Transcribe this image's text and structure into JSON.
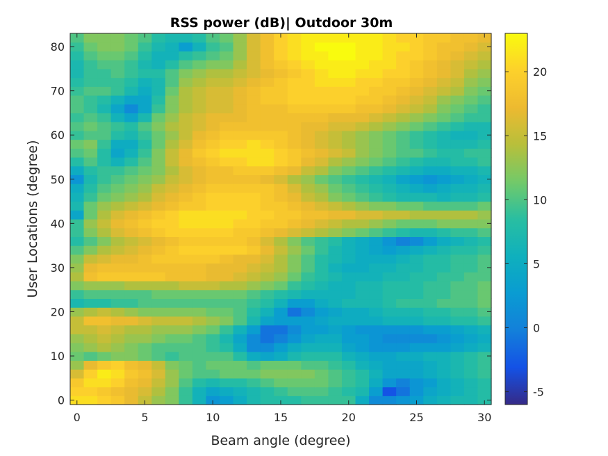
{
  "chart_data": {
    "type": "heatmap",
    "title": "RSS power (dB)| Outdoor 30m",
    "xlabel": "Beam angle (degree)",
    "ylabel": "User Locations (degree)",
    "x": [
      0,
      1,
      2,
      3,
      4,
      5,
      6,
      7,
      8,
      9,
      10,
      11,
      12,
      13,
      14,
      15,
      16,
      17,
      18,
      19,
      20,
      21,
      22,
      23,
      24,
      25,
      26,
      27,
      28,
      29,
      30
    ],
    "y": [
      0,
      2,
      4,
      6,
      8,
      10,
      12,
      14,
      16,
      18,
      20,
      22,
      24,
      26,
      28,
      30,
      32,
      34,
      36,
      38,
      40,
      42,
      44,
      46,
      48,
      50,
      52,
      54,
      56,
      58,
      60,
      62,
      64,
      66,
      68,
      70,
      72,
      74,
      76,
      78,
      80,
      82
    ],
    "xlim": [
      -0.5,
      30.5
    ],
    "ylim": [
      -1,
      83
    ],
    "xticks": [
      0,
      5,
      10,
      15,
      20,
      25,
      30
    ],
    "yticks": [
      0,
      10,
      20,
      30,
      40,
      50,
      60,
      70,
      80
    ],
    "colorbar": {
      "min": -6,
      "max": 23,
      "ticks": [
        -5,
        0,
        5,
        10,
        15,
        20
      ],
      "colormap": "parula"
    },
    "z": [
      [
        21,
        21,
        20,
        19,
        17,
        15,
        13,
        12,
        9,
        6,
        2,
        3,
        5,
        7,
        8,
        8,
        8,
        9,
        9,
        9,
        9,
        5,
        1,
        1,
        2,
        3,
        5,
        6,
        7,
        7,
        8
      ],
      [
        20,
        20,
        19,
        18,
        17,
        16,
        14,
        12,
        9,
        6,
        4,
        5,
        6,
        7,
        8,
        9,
        10,
        10,
        10,
        9,
        8,
        7,
        3,
        -3,
        -1,
        2,
        4,
        5,
        6,
        7,
        8
      ],
      [
        19,
        21,
        21,
        20,
        18,
        17,
        15,
        13,
        10,
        8,
        7,
        8,
        8,
        9,
        10,
        11,
        11,
        11,
        11,
        10,
        9,
        8,
        5,
        2,
        0,
        2,
        3,
        5,
        6,
        7,
        8
      ],
      [
        16,
        20,
        22,
        21,
        19,
        18,
        16,
        13,
        11,
        10,
        10,
        11,
        11,
        11,
        12,
        12,
        12,
        12,
        11,
        10,
        9,
        8,
        6,
        4,
        4,
        4,
        5,
        6,
        7,
        8,
        9
      ],
      [
        13,
        17,
        19,
        20,
        18,
        17,
        15,
        12,
        11,
        10,
        11,
        11,
        11,
        10,
        11,
        11,
        11,
        10,
        10,
        9,
        8,
        6,
        5,
        4,
        4,
        4,
        5,
        6,
        7,
        8,
        9
      ],
      [
        11,
        10,
        11,
        12,
        12,
        11,
        10,
        9,
        10,
        10,
        10,
        10,
        8,
        5,
        4,
        5,
        7,
        8,
        8,
        8,
        6,
        5,
        4,
        4,
        5,
        5,
        6,
        6,
        7,
        8,
        9
      ],
      [
        12,
        13,
        14,
        13,
        12,
        11,
        10,
        10,
        10,
        10,
        9,
        8,
        5,
        1,
        1,
        3,
        5,
        6,
        6,
        6,
        4,
        3,
        2,
        2,
        2,
        3,
        3,
        3,
        4,
        5,
        6
      ],
      [
        13,
        14,
        15,
        14,
        13,
        13,
        12,
        11,
        11,
        10,
        9,
        7,
        4,
        1,
        -1,
        0,
        2,
        4,
        5,
        5,
        3,
        3,
        2,
        1,
        1,
        1,
        1,
        2,
        3,
        4,
        5
      ],
      [
        15,
        15,
        16,
        15,
        14,
        14,
        13,
        13,
        13,
        12,
        11,
        9,
        6,
        3,
        -1,
        -1,
        1,
        3,
        3,
        4,
        3,
        2,
        2,
        2,
        2,
        2,
        3,
        3,
        4,
        5,
        6
      ],
      [
        15,
        18,
        18,
        17,
        17,
        16,
        15,
        15,
        15,
        14,
        13,
        12,
        10,
        7,
        4,
        3,
        3,
        3,
        4,
        5,
        5,
        5,
        5,
        6,
        6,
        6,
        7,
        7,
        8,
        8,
        9
      ],
      [
        13,
        14,
        15,
        14,
        13,
        12,
        12,
        12,
        12,
        12,
        11,
        11,
        10,
        8,
        6,
        3,
        -1,
        1,
        3,
        4,
        5,
        5,
        6,
        7,
        7,
        7,
        8,
        8,
        9,
        9,
        10
      ],
      [
        7,
        8,
        8,
        9,
        9,
        10,
        10,
        10,
        10,
        10,
        10,
        10,
        10,
        9,
        8,
        6,
        3,
        3,
        5,
        6,
        7,
        7,
        7,
        8,
        9,
        9,
        9,
        10,
        10,
        10,
        11
      ],
      [
        9,
        10,
        10,
        10,
        10,
        10,
        11,
        11,
        11,
        11,
        11,
        11,
        11,
        10,
        9,
        8,
        7,
        6,
        6,
        6,
        6,
        7,
        7,
        8,
        8,
        8,
        9,
        9,
        10,
        10,
        11
      ],
      [
        12,
        13,
        13,
        13,
        14,
        14,
        14,
        14,
        15,
        15,
        15,
        14,
        14,
        13,
        12,
        11,
        9,
        8,
        7,
        6,
        6,
        7,
        7,
        8,
        8,
        8,
        9,
        9,
        10,
        10,
        11
      ],
      [
        14,
        18,
        19,
        19,
        19,
        19,
        19,
        18,
        18,
        18,
        17,
        17,
        16,
        15,
        14,
        13,
        11,
        9,
        8,
        7,
        6,
        6,
        6,
        7,
        7,
        8,
        8,
        9,
        9,
        10,
        10
      ],
      [
        13,
        17,
        18,
        18,
        18,
        18,
        18,
        18,
        18,
        18,
        17,
        17,
        17,
        16,
        15,
        14,
        12,
        10,
        8,
        6,
        5,
        5,
        6,
        6,
        7,
        7,
        8,
        8,
        9,
        9,
        10
      ],
      [
        12,
        15,
        16,
        17,
        17,
        18,
        19,
        19,
        19,
        19,
        19,
        18,
        17,
        17,
        16,
        14,
        12,
        10,
        8,
        7,
        6,
        5,
        5,
        5,
        6,
        7,
        8,
        8,
        9,
        9,
        10
      ],
      [
        10,
        12,
        14,
        15,
        16,
        17,
        18,
        19,
        20,
        20,
        20,
        20,
        20,
        19,
        17,
        15,
        13,
        11,
        9,
        7,
        6,
        5,
        4,
        3,
        4,
        5,
        6,
        7,
        8,
        8,
        9
      ],
      [
        8,
        10,
        12,
        14,
        15,
        16,
        17,
        18,
        19,
        19,
        19,
        19,
        19,
        18,
        16,
        14,
        12,
        10,
        9,
        8,
        6,
        5,
        4,
        2,
        0,
        1,
        3,
        5,
        6,
        7,
        8
      ],
      [
        9,
        12,
        14,
        16,
        17,
        18,
        19,
        20,
        20,
        20,
        20,
        20,
        19,
        19,
        18,
        17,
        16,
        15,
        14,
        13,
        12,
        11,
        10,
        9,
        8,
        7,
        7,
        8,
        9,
        9,
        10
      ],
      [
        9,
        13,
        15,
        17,
        18,
        19,
        20,
        20,
        21,
        21,
        21,
        21,
        20,
        20,
        19,
        19,
        18,
        17,
        16,
        15,
        14,
        14,
        13,
        12,
        11,
        11,
        11,
        12,
        12,
        12,
        12
      ],
      [
        4,
        11,
        14,
        16,
        17,
        18,
        19,
        20,
        21,
        21,
        21,
        21,
        21,
        20,
        20,
        19,
        19,
        18,
        18,
        17,
        17,
        16,
        16,
        15,
        15,
        14,
        14,
        14,
        14,
        14,
        13
      ],
      [
        7,
        11,
        13,
        14,
        15,
        16,
        17,
        18,
        19,
        19,
        20,
        20,
        20,
        20,
        19,
        19,
        18,
        17,
        16,
        15,
        14,
        13,
        12,
        12,
        11,
        11,
        10,
        10,
        10,
        10,
        11
      ],
      [
        6,
        9,
        11,
        12,
        13,
        14,
        16,
        17,
        18,
        19,
        20,
        20,
        20,
        20,
        19,
        18,
        17,
        15,
        14,
        12,
        11,
        10,
        9,
        8,
        7,
        7,
        7,
        6,
        7,
        7,
        8
      ],
      [
        5,
        8,
        10,
        11,
        12,
        13,
        15,
        16,
        17,
        18,
        19,
        19,
        19,
        19,
        19,
        18,
        16,
        14,
        13,
        11,
        10,
        9,
        8,
        7,
        6,
        5,
        4,
        5,
        6,
        6,
        7
      ],
      [
        2,
        7,
        9,
        10,
        11,
        12,
        13,
        15,
        16,
        17,
        18,
        18,
        18,
        18,
        17,
        16,
        14,
        13,
        11,
        10,
        9,
        8,
        7,
        6,
        4,
        3,
        2,
        3,
        4,
        5,
        6
      ],
      [
        5,
        8,
        9,
        9,
        10,
        11,
        12,
        14,
        16,
        17,
        18,
        18,
        19,
        19,
        19,
        18,
        17,
        15,
        14,
        12,
        11,
        10,
        9,
        8,
        7,
        6,
        5,
        5,
        6,
        6,
        7
      ],
      [
        8,
        10,
        8,
        6,
        8,
        10,
        12,
        15,
        17,
        18,
        19,
        20,
        20,
        21,
        21,
        20,
        19,
        17,
        16,
        14,
        13,
        12,
        11,
        10,
        9,
        8,
        7,
        7,
        8,
        8,
        9
      ],
      [
        10,
        11,
        8,
        4,
        6,
        9,
        12,
        15,
        17,
        19,
        20,
        21,
        21,
        21,
        21,
        20,
        19,
        18,
        17,
        16,
        15,
        13,
        12,
        11,
        10,
        10,
        9,
        8,
        8,
        9,
        9
      ],
      [
        11,
        12,
        9,
        5,
        5,
        8,
        11,
        14,
        16,
        18,
        19,
        20,
        20,
        21,
        20,
        19,
        18,
        17,
        16,
        15,
        14,
        13,
        12,
        11,
        10,
        9,
        8,
        7,
        7,
        7,
        8
      ],
      [
        9,
        10,
        10,
        8,
        7,
        9,
        11,
        13,
        15,
        17,
        18,
        19,
        19,
        19,
        19,
        19,
        18,
        17,
        16,
        15,
        14,
        13,
        12,
        11,
        10,
        9,
        8,
        7,
        6,
        6,
        7
      ],
      [
        10,
        11,
        10,
        9,
        8,
        10,
        12,
        14,
        15,
        16,
        17,
        18,
        18,
        18,
        18,
        18,
        18,
        17,
        17,
        16,
        16,
        15,
        14,
        13,
        12,
        11,
        10,
        9,
        8,
        7,
        7
      ],
      [
        9,
        10,
        9,
        6,
        4,
        7,
        11,
        13,
        15,
        16,
        17,
        17,
        17,
        18,
        18,
        18,
        18,
        18,
        18,
        17,
        17,
        17,
        16,
        15,
        14,
        13,
        12,
        11,
        10,
        9,
        9
      ],
      [
        10,
        9,
        7,
        4,
        1,
        4,
        9,
        12,
        14,
        15,
        16,
        16,
        17,
        18,
        18,
        18,
        19,
        19,
        19,
        19,
        19,
        18,
        18,
        17,
        16,
        15,
        14,
        12,
        11,
        10,
        9
      ],
      [
        10,
        9,
        8,
        6,
        4,
        4,
        8,
        12,
        14,
        15,
        16,
        16,
        17,
        18,
        19,
        19,
        20,
        20,
        20,
        20,
        20,
        19,
        19,
        18,
        17,
        16,
        15,
        13,
        12,
        11,
        10
      ],
      [
        9,
        10,
        10,
        9,
        7,
        5,
        7,
        11,
        14,
        15,
        16,
        16,
        17,
        18,
        19,
        19,
        20,
        20,
        20,
        20,
        20,
        20,
        19,
        19,
        18,
        17,
        16,
        15,
        14,
        12,
        11
      ],
      [
        8,
        9,
        9,
        9,
        8,
        6,
        7,
        10,
        13,
        14,
        15,
        15,
        16,
        17,
        18,
        19,
        20,
        20,
        21,
        21,
        21,
        20,
        20,
        19,
        19,
        18,
        17,
        16,
        15,
        13,
        12
      ],
      [
        7,
        9,
        9,
        10,
        9,
        8,
        8,
        10,
        12,
        13,
        14,
        14,
        15,
        16,
        17,
        18,
        19,
        20,
        21,
        22,
        22,
        21,
        21,
        20,
        20,
        19,
        18,
        17,
        16,
        14,
        13
      ],
      [
        7,
        9,
        10,
        10,
        9,
        7,
        6,
        8,
        10,
        11,
        12,
        12,
        14,
        16,
        18,
        19,
        20,
        21,
        22,
        22,
        22,
        22,
        21,
        21,
        20,
        19,
        18,
        17,
        16,
        15,
        14
      ],
      [
        8,
        10,
        11,
        11,
        10,
        8,
        6,
        6,
        8,
        9,
        10,
        11,
        13,
        16,
        18,
        20,
        21,
        22,
        22,
        23,
        23,
        22,
        22,
        21,
        20,
        20,
        19,
        18,
        17,
        16,
        15
      ],
      [
        9,
        11,
        12,
        12,
        11,
        9,
        7,
        6,
        3,
        6,
        9,
        10,
        13,
        16,
        18,
        20,
        21,
        22,
        23,
        23,
        23,
        22,
        22,
        21,
        21,
        20,
        19,
        18,
        18,
        17,
        16
      ],
      [
        10,
        12,
        12,
        12,
        11,
        10,
        8,
        7,
        7,
        8,
        10,
        11,
        13,
        16,
        18,
        20,
        21,
        22,
        22,
        22,
        22,
        22,
        22,
        21,
        20,
        20,
        19,
        19,
        18,
        18,
        17
      ]
    ]
  }
}
